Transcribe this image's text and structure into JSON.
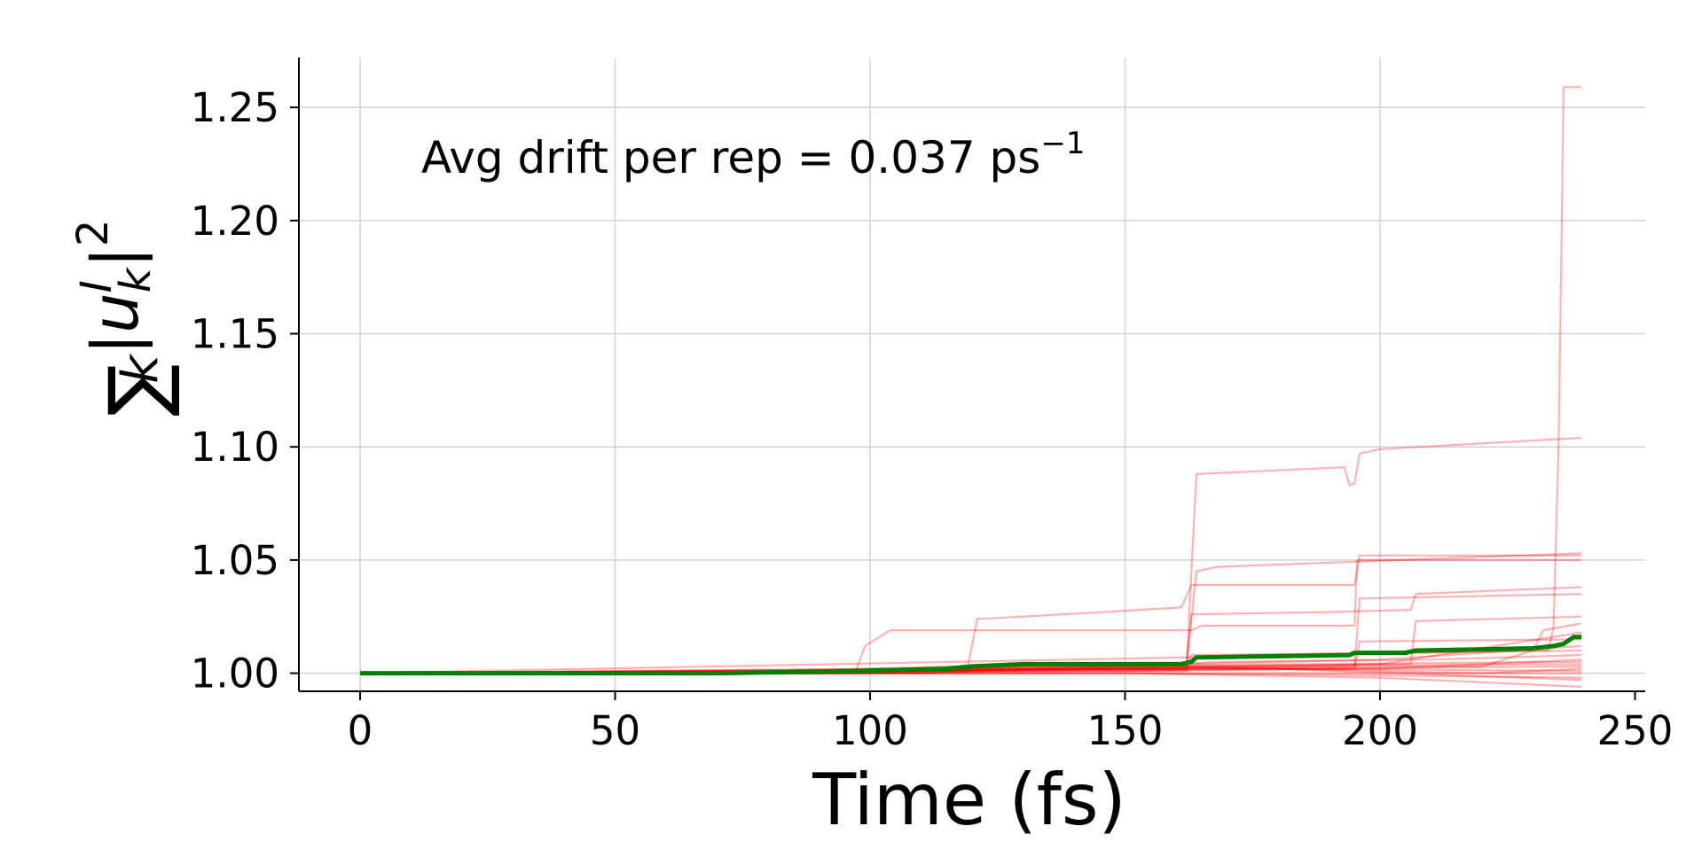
{
  "chart_data": {
    "type": "line",
    "xlabel": "Time (fs)",
    "ylabel": {
      "sum": "∑",
      "sub": "k",
      "body": "|u",
      "sup_i": "I",
      "sub_k": "k",
      "close": "|",
      "power": "2"
    },
    "xlim": [
      -12,
      252
    ],
    "ylim": [
      0.992,
      1.272
    ],
    "xticks": [
      0,
      50,
      100,
      150,
      200,
      250
    ],
    "xtick_labels": [
      "0",
      "50",
      "100",
      "150",
      "200",
      "250"
    ],
    "yticks": [
      1.0,
      1.05,
      1.1,
      1.15,
      1.2,
      1.25
    ],
    "ytick_labels": [
      "1.00",
      "1.05",
      "1.10",
      "1.15",
      "1.20",
      "1.25"
    ],
    "grid": true,
    "annotation": {
      "text": "Avg drift per rep = 0.037 ps",
      "sup": "−1"
    },
    "colors": {
      "replicas": "#ff0000",
      "average": "#008000",
      "grid": "#d3d3d3"
    },
    "series": [
      {
        "values": [
          [
            0,
            1.0
          ],
          [
            97,
            1.0
          ],
          [
            99,
            1.012
          ],
          [
            104,
            1.019
          ],
          [
            163,
            1.019
          ],
          [
            165,
            1.021
          ],
          [
            195,
            1.021
          ],
          [
            195.5,
            1.05
          ],
          [
            239.5,
            1.05
          ]
        ]
      },
      {
        "values": [
          [
            0,
            1.0
          ],
          [
            98,
            1.0
          ],
          [
            104,
            1.001
          ],
          [
            162,
            1.001
          ],
          [
            164,
            1.088
          ],
          [
            193,
            1.091
          ],
          [
            194,
            1.083
          ],
          [
            195,
            1.084
          ],
          [
            196,
            1.097
          ],
          [
            200,
            1.099
          ],
          [
            239.5,
            1.104
          ]
        ]
      },
      {
        "values": [
          [
            0,
            1.0
          ],
          [
            119,
            1.001
          ],
          [
            121,
            1.024
          ],
          [
            130,
            1.025
          ],
          [
            161,
            1.029
          ],
          [
            163,
            1.039
          ],
          [
            195,
            1.039
          ],
          [
            196,
            1.052
          ],
          [
            239.5,
            1.052
          ]
        ]
      },
      {
        "values": [
          [
            0,
            1.0
          ],
          [
            162,
            1.002
          ],
          [
            164,
            1.045
          ],
          [
            168,
            1.047
          ],
          [
            239.5,
            1.053
          ]
        ]
      },
      {
        "values": [
          [
            0,
            1.0
          ],
          [
            162,
            1.002
          ],
          [
            163,
            1.026
          ],
          [
            190,
            1.027
          ],
          [
            206,
            1.028
          ],
          [
            207,
            1.035
          ],
          [
            239.5,
            1.038
          ]
        ]
      },
      {
        "values": [
          [
            0,
            1.0
          ],
          [
            195,
            1.003
          ],
          [
            196,
            1.033
          ],
          [
            239.5,
            1.035
          ]
        ]
      },
      {
        "values": [
          [
            0,
            1.0
          ],
          [
            206,
            1.004
          ],
          [
            207,
            1.023
          ],
          [
            239.5,
            1.025
          ]
        ]
      },
      {
        "values": [
          [
            0,
            1.0
          ],
          [
            220,
            1.003
          ],
          [
            230,
            1.01
          ],
          [
            232,
            1.019
          ],
          [
            239.5,
            1.022
          ]
        ]
      },
      {
        "values": [
          [
            0,
            1.0
          ],
          [
            233,
            1.01
          ],
          [
            234,
            1.02
          ],
          [
            235,
            1.1
          ],
          [
            236,
            1.259
          ],
          [
            239.5,
            1.259
          ]
        ]
      },
      {
        "values": [
          [
            0,
            1.0
          ],
          [
            110,
            1.0
          ],
          [
            130,
            1.004
          ],
          [
            160,
            1.004
          ],
          [
            200,
            1.006
          ],
          [
            239.5,
            1.012
          ]
        ]
      },
      {
        "values": [
          [
            0,
            1.0
          ],
          [
            100,
            1.001
          ],
          [
            150,
            1.002
          ],
          [
            200,
            1.002
          ],
          [
            239.5,
            1.006
          ]
        ]
      },
      {
        "values": [
          [
            0,
            1.0
          ],
          [
            100,
            1.0
          ],
          [
            150,
            1.0
          ],
          [
            200,
            0.999
          ],
          [
            239.5,
            0.998
          ]
        ]
      },
      {
        "values": [
          [
            0,
            1.0
          ],
          [
            150,
            1.0
          ],
          [
            200,
            0.998
          ],
          [
            220,
            0.996
          ],
          [
            239.5,
            0.994
          ]
        ]
      },
      {
        "values": [
          [
            0,
            1.0
          ],
          [
            110,
            1.001
          ],
          [
            162,
            1.002
          ],
          [
            163,
            1.008
          ],
          [
            200,
            1.009
          ],
          [
            239.5,
            1.01
          ]
        ]
      },
      {
        "values": [
          [
            0,
            1.0
          ],
          [
            120,
            1.002
          ],
          [
            170,
            1.003
          ],
          [
            239.5,
            1.004
          ]
        ]
      },
      {
        "values": [
          [
            0,
            1.0
          ],
          [
            90,
            1.0
          ],
          [
            140,
            1.001
          ],
          [
            239.5,
            1.003
          ]
        ]
      },
      {
        "values": [
          [
            0,
            1.0
          ],
          [
            100,
            1.0
          ],
          [
            180,
            1.0
          ],
          [
            239.5,
            1.0
          ]
        ]
      },
      {
        "values": [
          [
            0,
            1.0
          ],
          [
            110,
            1.0
          ],
          [
            170,
            1.005
          ],
          [
            210,
            1.006
          ],
          [
            239.5,
            1.008
          ]
        ]
      },
      {
        "values": [
          [
            0,
            1.0
          ],
          [
            70,
            1.0
          ],
          [
            116,
            1.003
          ],
          [
            239.5,
            1.001
          ]
        ]
      },
      {
        "values": [
          [
            0,
            1.0
          ],
          [
            150,
            1.001
          ],
          [
            195,
            1.002
          ],
          [
            196,
            1.014
          ],
          [
            239.5,
            1.015
          ]
        ]
      },
      {
        "values": [
          [
            0,
            1.0
          ],
          [
            100,
            1.001
          ],
          [
            180,
            1.002
          ],
          [
            239.5,
            0.997
          ]
        ]
      },
      {
        "values": [
          [
            0,
            1.0
          ],
          [
            120,
            1.001
          ],
          [
            200,
            1.004
          ],
          [
            239.5,
            1.018
          ]
        ]
      },
      {
        "values": [
          [
            0,
            1.0
          ],
          [
            100,
            1.0
          ],
          [
            130,
            1.003
          ],
          [
            239.5,
            1.005
          ]
        ]
      },
      {
        "values": [
          [
            0,
            1.0
          ],
          [
            100,
            1.001
          ],
          [
            160,
            1.003
          ],
          [
            220,
            1.0
          ],
          [
            239.5,
            1.002
          ]
        ]
      }
    ],
    "average": {
      "values": [
        [
          0,
          1.0
        ],
        [
          70,
          1.0
        ],
        [
          97,
          1.001
        ],
        [
          115,
          1.002
        ],
        [
          120,
          1.003
        ],
        [
          130,
          1.004
        ],
        [
          161,
          1.004
        ],
        [
          163,
          1.005
        ],
        [
          164,
          1.007
        ],
        [
          194,
          1.008
        ],
        [
          195,
          1.009
        ],
        [
          205,
          1.009
        ],
        [
          207,
          1.01
        ],
        [
          230,
          1.011
        ],
        [
          234,
          1.012
        ],
        [
          236,
          1.013
        ],
        [
          238,
          1.016
        ],
        [
          239.5,
          1.016
        ]
      ]
    }
  }
}
